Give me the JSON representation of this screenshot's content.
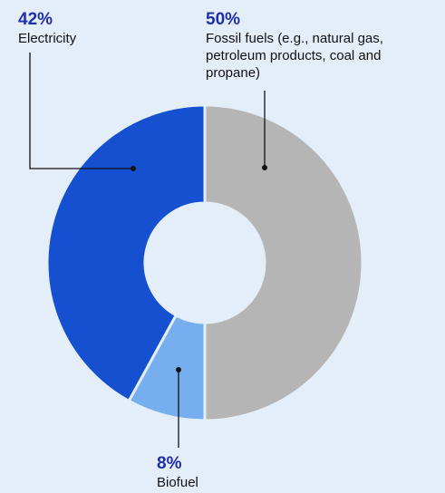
{
  "chart_data": {
    "type": "pie",
    "donut": true,
    "slices": [
      {
        "label": "Fossil fuels (e.g., natural gas, petroleum products, coal and propane)",
        "pct_label": "50%",
        "value": 50,
        "color": "#b5b5b5"
      },
      {
        "label": "Biofuel",
        "pct_label": "8%",
        "value": 8,
        "color": "#77aef0"
      },
      {
        "label": "Electricity",
        "pct_label": "42%",
        "value": 42,
        "color": "#1550d0"
      }
    ]
  },
  "colors": {
    "background": "#e4eef8",
    "percent_text": "#1f2fa8",
    "leader_line": "#111111"
  }
}
